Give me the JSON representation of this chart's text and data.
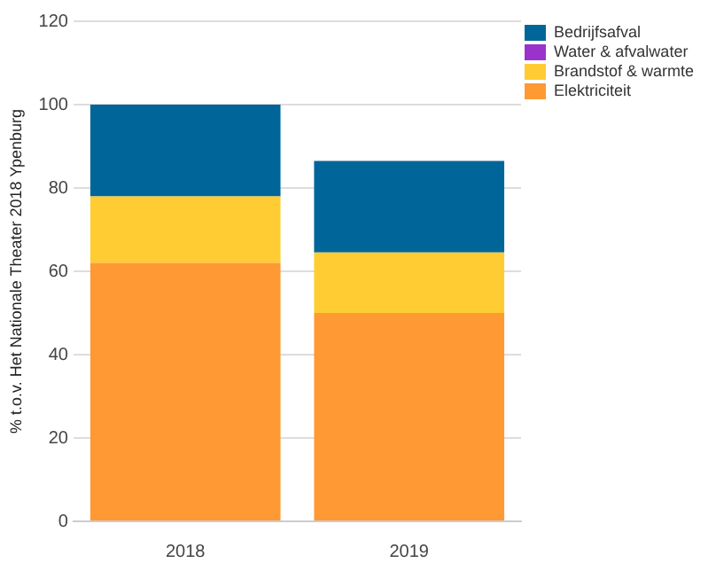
{
  "chart_data": {
    "type": "bar",
    "stacked": true,
    "ylabel": "% t.o.v. Het Nationale Theater 2018 Ypenburg",
    "categories": [
      "2018",
      "2019"
    ],
    "series": [
      {
        "name": "Elektriciteit",
        "color": "#ff9933",
        "values": [
          62,
          50
        ]
      },
      {
        "name": "Brandstof & warmte",
        "color": "#ffcc33",
        "values": [
          16,
          14.5
        ]
      },
      {
        "name": "Water & afvalwater",
        "color": "#9933cc",
        "values": [
          0,
          0
        ]
      },
      {
        "name": "Bedrijfsafval",
        "color": "#006699",
        "values": [
          22,
          22
        ]
      }
    ],
    "ylim": [
      0,
      120
    ],
    "yticks": [
      0,
      20,
      40,
      60,
      80,
      100,
      120
    ],
    "grid": "y",
    "legend": "top right"
  }
}
